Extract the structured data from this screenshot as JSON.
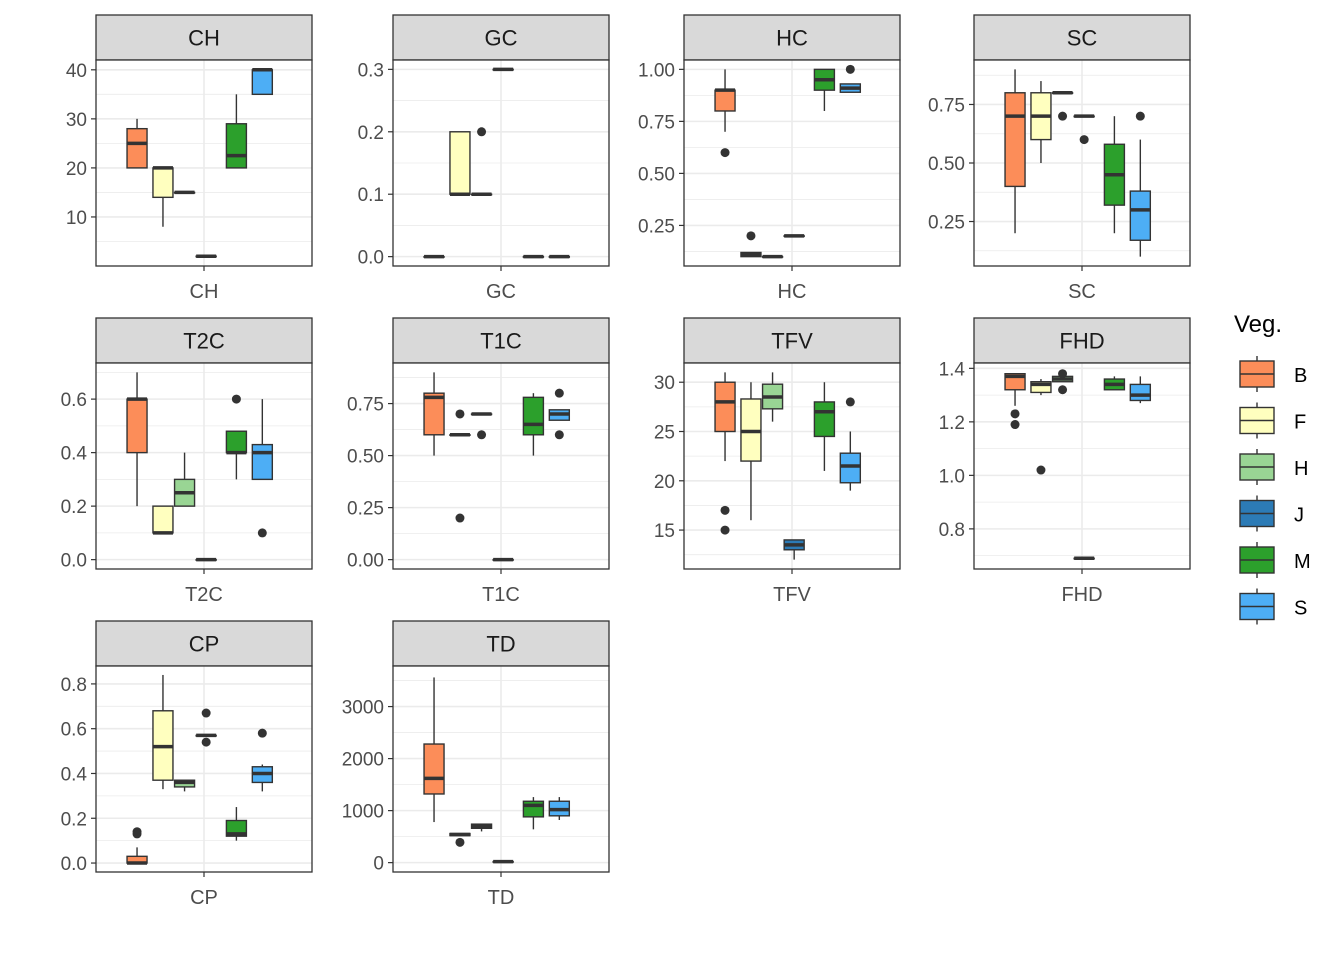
{
  "colors": {
    "B": "#FC8D59",
    "F": "#FFFFBF",
    "H": "#99D594",
    "J": "#2C7BB6",
    "M": "#2CA02C",
    "S": "#4DAEF5",
    "strip_bg": "#D9D9D9",
    "grid": "#EBEBEB",
    "border": "#333333",
    "text": "#4D4D4D"
  },
  "legend": {
    "title": "Veg.",
    "items": [
      "B",
      "F",
      "H",
      "J",
      "M",
      "S"
    ]
  },
  "chart_data": [
    {
      "type": "boxplot",
      "title": "CH",
      "xlabel": "CH",
      "ylim": [
        0,
        42
      ],
      "yticks": [
        10,
        20,
        30,
        40
      ],
      "tick_decimals": 0,
      "groups": [
        {
          "name": "B",
          "lower": 20,
          "q1": 20,
          "median": 25,
          "q3": 28,
          "upper": 30,
          "outliers": []
        },
        {
          "name": "F",
          "lower": 8,
          "q1": 14,
          "median": 20,
          "q3": 20,
          "upper": 20,
          "outliers": []
        },
        {
          "name": "H",
          "lower": 15,
          "q1": 15,
          "median": 15,
          "q3": 15,
          "upper": 15,
          "outliers": []
        },
        {
          "name": "J",
          "lower": 2,
          "q1": 2,
          "median": 2,
          "q3": 2,
          "upper": 2,
          "outliers": []
        },
        {
          "name": "M",
          "lower": 20,
          "q1": 20,
          "median": 22.5,
          "q3": 29,
          "upper": 35,
          "outliers": []
        },
        {
          "name": "S",
          "lower": 35,
          "q1": 35,
          "median": 40,
          "q3": 40,
          "upper": 40,
          "outliers": []
        }
      ]
    },
    {
      "type": "boxplot",
      "title": "GC",
      "xlabel": "GC",
      "ylim": [
        -0.015,
        0.315
      ],
      "yticks": [
        0.0,
        0.1,
        0.2,
        0.3
      ],
      "tick_decimals": 1,
      "groups": [
        {
          "name": "B",
          "lower": 0,
          "q1": 0,
          "median": 0,
          "q3": 0,
          "upper": 0,
          "outliers": []
        },
        {
          "name": "F",
          "lower": 0.1,
          "q1": 0.1,
          "median": 0.1,
          "q3": 0.2,
          "upper": 0.2,
          "outliers": []
        },
        {
          "name": "H",
          "lower": 0.1,
          "q1": 0.1,
          "median": 0.1,
          "q3": 0.1,
          "upper": 0.1,
          "outliers": [
            0.2
          ]
        },
        {
          "name": "J",
          "lower": 0.3,
          "q1": 0.3,
          "median": 0.3,
          "q3": 0.3,
          "upper": 0.3,
          "outliers": []
        },
        {
          "name": "M",
          "lower": 0,
          "q1": 0,
          "median": 0,
          "q3": 0,
          "upper": 0,
          "outliers": []
        },
        {
          "name": "S",
          "lower": 0,
          "q1": 0,
          "median": 0,
          "q3": 0,
          "upper": 0,
          "outliers": []
        }
      ]
    },
    {
      "type": "boxplot",
      "title": "HC",
      "xlabel": "HC",
      "ylim": [
        0.055,
        1.045
      ],
      "yticks": [
        0.25,
        0.5,
        0.75,
        1.0
      ],
      "tick_decimals": 2,
      "groups": [
        {
          "name": "B",
          "lower": 0.7,
          "q1": 0.8,
          "median": 0.9,
          "q3": 0.9,
          "upper": 1.0,
          "outliers": [
            0.6
          ]
        },
        {
          "name": "F",
          "lower": 0.1,
          "q1": 0.1,
          "median": 0.11,
          "q3": 0.12,
          "upper": 0.12,
          "outliers": [
            0.2
          ]
        },
        {
          "name": "H",
          "lower": 0.1,
          "q1": 0.1,
          "median": 0.1,
          "q3": 0.1,
          "upper": 0.1,
          "outliers": []
        },
        {
          "name": "J",
          "lower": 0.2,
          "q1": 0.2,
          "median": 0.2,
          "q3": 0.2,
          "upper": 0.2,
          "outliers": []
        },
        {
          "name": "M",
          "lower": 0.8,
          "q1": 0.9,
          "median": 0.95,
          "q3": 1.0,
          "upper": 1.0,
          "outliers": []
        },
        {
          "name": "S",
          "lower": 0.89,
          "q1": 0.89,
          "median": 0.91,
          "q3": 0.93,
          "upper": 0.93,
          "outliers": [
            1.0
          ]
        }
      ]
    },
    {
      "type": "boxplot",
      "title": "SC",
      "xlabel": "SC",
      "ylim": [
        0.06,
        0.94
      ],
      "yticks": [
        0.25,
        0.5,
        0.75
      ],
      "tick_decimals": 2,
      "groups": [
        {
          "name": "B",
          "lower": 0.2,
          "q1": 0.4,
          "median": 0.7,
          "q3": 0.8,
          "upper": 0.9,
          "outliers": []
        },
        {
          "name": "F",
          "lower": 0.5,
          "q1": 0.6,
          "median": 0.7,
          "q3": 0.8,
          "upper": 0.85,
          "outliers": []
        },
        {
          "name": "H",
          "lower": 0.8,
          "q1": 0.8,
          "median": 0.8,
          "q3": 0.8,
          "upper": 0.8,
          "outliers": [
            0.7
          ]
        },
        {
          "name": "J",
          "lower": 0.7,
          "q1": 0.7,
          "median": 0.7,
          "q3": 0.7,
          "upper": 0.7,
          "outliers": [
            0.6
          ]
        },
        {
          "name": "M",
          "lower": 0.2,
          "q1": 0.32,
          "median": 0.45,
          "q3": 0.58,
          "upper": 0.7,
          "outliers": []
        },
        {
          "name": "S",
          "lower": 0.1,
          "q1": 0.17,
          "median": 0.3,
          "q3": 0.38,
          "upper": 0.6,
          "outliers": [
            0.7
          ]
        }
      ]
    },
    {
      "type": "boxplot",
      "title": "T2C",
      "xlabel": "T2C",
      "ylim": [
        -0.035,
        0.735
      ],
      "yticks": [
        0.0,
        0.2,
        0.4,
        0.6
      ],
      "tick_decimals": 1,
      "groups": [
        {
          "name": "B",
          "lower": 0.2,
          "q1": 0.4,
          "median": 0.6,
          "q3": 0.6,
          "upper": 0.7,
          "outliers": []
        },
        {
          "name": "F",
          "lower": 0.1,
          "q1": 0.1,
          "median": 0.1,
          "q3": 0.2,
          "upper": 0.2,
          "outliers": []
        },
        {
          "name": "H",
          "lower": 0.2,
          "q1": 0.2,
          "median": 0.25,
          "q3": 0.3,
          "upper": 0.4,
          "outliers": []
        },
        {
          "name": "J",
          "lower": 0,
          "q1": 0,
          "median": 0,
          "q3": 0,
          "upper": 0,
          "outliers": []
        },
        {
          "name": "M",
          "lower": 0.3,
          "q1": 0.4,
          "median": 0.4,
          "q3": 0.48,
          "upper": 0.48,
          "outliers": [
            0.6
          ]
        },
        {
          "name": "S",
          "lower": 0.3,
          "q1": 0.3,
          "median": 0.4,
          "q3": 0.43,
          "upper": 0.6,
          "outliers": [
            0.1
          ]
        }
      ]
    },
    {
      "type": "boxplot",
      "title": "T1C",
      "xlabel": "T1C",
      "ylim": [
        -0.045,
        0.945
      ],
      "yticks": [
        0.0,
        0.25,
        0.5,
        0.75
      ],
      "tick_decimals": 2,
      "groups": [
        {
          "name": "B",
          "lower": 0.5,
          "q1": 0.6,
          "median": 0.78,
          "q3": 0.8,
          "upper": 0.9,
          "outliers": []
        },
        {
          "name": "F",
          "lower": 0.6,
          "q1": 0.6,
          "median": 0.6,
          "q3": 0.6,
          "upper": 0.6,
          "outliers": [
            0.7,
            0.2
          ]
        },
        {
          "name": "H",
          "lower": 0.7,
          "q1": 0.7,
          "median": 0.7,
          "q3": 0.7,
          "upper": 0.7,
          "outliers": [
            0.6
          ]
        },
        {
          "name": "J",
          "lower": 0,
          "q1": 0,
          "median": 0,
          "q3": 0,
          "upper": 0,
          "outliers": []
        },
        {
          "name": "M",
          "lower": 0.5,
          "q1": 0.6,
          "median": 0.65,
          "q3": 0.78,
          "upper": 0.8,
          "outliers": []
        },
        {
          "name": "S",
          "lower": 0.67,
          "q1": 0.67,
          "median": 0.7,
          "q3": 0.72,
          "upper": 0.72,
          "outliers": [
            0.8,
            0.6
          ]
        }
      ]
    },
    {
      "type": "boxplot",
      "title": "TFV",
      "xlabel": "TFV",
      "ylim": [
        11.05,
        31.95
      ],
      "yticks": [
        15,
        20,
        25,
        30
      ],
      "tick_decimals": 0,
      "groups": [
        {
          "name": "B",
          "lower": 22,
          "q1": 25,
          "median": 28,
          "q3": 30,
          "upper": 31,
          "outliers": [
            17,
            15
          ]
        },
        {
          "name": "F",
          "lower": 16,
          "q1": 22,
          "median": 25,
          "q3": 28.3,
          "upper": 30,
          "outliers": []
        },
        {
          "name": "H",
          "lower": 26,
          "q1": 27.3,
          "median": 28.5,
          "q3": 29.8,
          "upper": 31,
          "outliers": []
        },
        {
          "name": "J",
          "lower": 12,
          "q1": 13,
          "median": 13.5,
          "q3": 14,
          "upper": 14,
          "outliers": []
        },
        {
          "name": "M",
          "lower": 21,
          "q1": 24.5,
          "median": 27,
          "q3": 28,
          "upper": 30,
          "outliers": []
        },
        {
          "name": "S",
          "lower": 19,
          "q1": 19.8,
          "median": 21.5,
          "q3": 22.8,
          "upper": 25,
          "outliers": [
            28
          ]
        }
      ]
    },
    {
      "type": "boxplot",
      "title": "FHD",
      "xlabel": "FHD",
      "ylim": [
        0.65,
        1.42
      ],
      "yticks": [
        0.8,
        1.0,
        1.2,
        1.4
      ],
      "tick_decimals": 1,
      "groups": [
        {
          "name": "B",
          "lower": 1.26,
          "q1": 1.32,
          "median": 1.37,
          "q3": 1.38,
          "upper": 1.38,
          "outliers": [
            1.23,
            1.19
          ]
        },
        {
          "name": "F",
          "lower": 1.3,
          "q1": 1.31,
          "median": 1.34,
          "q3": 1.35,
          "upper": 1.36,
          "outliers": [
            1.02
          ]
        },
        {
          "name": "H",
          "lower": 1.35,
          "q1": 1.35,
          "median": 1.36,
          "q3": 1.37,
          "upper": 1.37,
          "outliers": [
            1.38,
            1.32
          ]
        },
        {
          "name": "J",
          "lower": 0.69,
          "q1": 0.69,
          "median": 0.69,
          "q3": 0.69,
          "upper": 0.69,
          "outliers": []
        },
        {
          "name": "M",
          "lower": 1.32,
          "q1": 1.32,
          "median": 1.34,
          "q3": 1.36,
          "upper": 1.37,
          "outliers": []
        },
        {
          "name": "S",
          "lower": 1.27,
          "q1": 1.28,
          "median": 1.3,
          "q3": 1.34,
          "upper": 1.37,
          "outliers": []
        }
      ]
    },
    {
      "type": "boxplot",
      "title": "CP",
      "xlabel": "CP",
      "ylim": [
        -0.04,
        0.88
      ],
      "yticks": [
        0.0,
        0.2,
        0.4,
        0.6,
        0.8
      ],
      "tick_decimals": 1,
      "groups": [
        {
          "name": "B",
          "lower": 0,
          "q1": 0,
          "median": 0,
          "q3": 0.03,
          "upper": 0.07,
          "outliers": [
            0.14,
            0.13
          ]
        },
        {
          "name": "F",
          "lower": 0.33,
          "q1": 0.37,
          "median": 0.52,
          "q3": 0.68,
          "upper": 0.84,
          "outliers": []
        },
        {
          "name": "H",
          "lower": 0.32,
          "q1": 0.34,
          "median": 0.36,
          "q3": 0.37,
          "upper": 0.37,
          "outliers": []
        },
        {
          "name": "J",
          "lower": 0.57,
          "q1": 0.57,
          "median": 0.57,
          "q3": 0.57,
          "upper": 0.57,
          "outliers": [
            0.67,
            0.54
          ]
        },
        {
          "name": "M",
          "lower": 0.1,
          "q1": 0.12,
          "median": 0.13,
          "q3": 0.19,
          "upper": 0.25,
          "outliers": []
        },
        {
          "name": "S",
          "lower": 0.32,
          "q1": 0.36,
          "median": 0.4,
          "q3": 0.43,
          "upper": 0.44,
          "outliers": [
            0.58
          ]
        }
      ]
    },
    {
      "type": "boxplot",
      "title": "TD",
      "xlabel": "TD",
      "ylim": [
        -180,
        3780
      ],
      "yticks": [
        0,
        1000,
        2000,
        3000
      ],
      "tick_decimals": 0,
      "groups": [
        {
          "name": "B",
          "lower": 780,
          "q1": 1320,
          "median": 1620,
          "q3": 2280,
          "upper": 3560,
          "outliers": []
        },
        {
          "name": "F",
          "lower": 520,
          "q1": 520,
          "median": 540,
          "q3": 560,
          "upper": 560,
          "outliers": [
            390
          ]
        },
        {
          "name": "H",
          "lower": 600,
          "q1": 660,
          "median": 700,
          "q3": 740,
          "upper": 740,
          "outliers": []
        },
        {
          "name": "J",
          "lower": 20,
          "q1": 20,
          "median": 20,
          "q3": 20,
          "upper": 20,
          "outliers": []
        },
        {
          "name": "M",
          "lower": 640,
          "q1": 880,
          "median": 1100,
          "q3": 1180,
          "upper": 1260,
          "outliers": []
        },
        {
          "name": "S",
          "lower": 820,
          "q1": 900,
          "median": 1020,
          "q3": 1180,
          "upper": 1260,
          "outliers": []
        }
      ]
    }
  ]
}
